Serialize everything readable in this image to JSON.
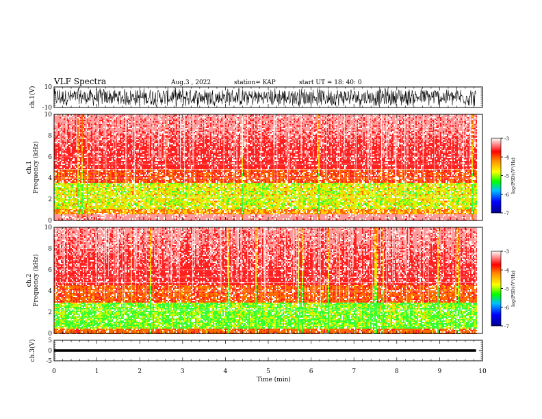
{
  "header": {
    "title": "VLF Spectra",
    "date": "Aug.3  , 2022",
    "station": "station= KAP",
    "start": "start  UT  =   18: 40: 0"
  },
  "chart_data": [
    {
      "type": "line",
      "panel": "ch1-waveform",
      "ylabel": "ch.1(V)",
      "ylim": [
        -10,
        10
      ],
      "yticks": [
        "10",
        "-10"
      ],
      "xlim": [
        0,
        10
      ],
      "style": "dense black noisy waveform spanning nearly full range",
      "x_end": 9.85
    },
    {
      "type": "heatmap",
      "panel": "ch1-spectrogram",
      "ylabel": "ch.1\nFrequency  (kHz)",
      "ylim": [
        0,
        10
      ],
      "yticks": [
        "0",
        "2",
        "4",
        "6",
        "8",
        "10"
      ],
      "xlim": [
        0,
        10
      ],
      "x_end": 9.85,
      "colorbar": {
        "label": "log(PSD)(V²/Hz)",
        "range": [
          -7,
          -3
        ],
        "ticks": [
          "-3",
          "-4",
          "-5",
          "-6",
          "-7"
        ],
        "colors": [
          "#00008b",
          "#0000ff",
          "#00bfff",
          "#00ff00",
          "#ffff00",
          "#ff8c00",
          "#ff0000",
          "#ffffff"
        ]
      },
      "bands": [
        {
          "from_khz": 0,
          "to_khz": 1,
          "level": "white/red"
        },
        {
          "from_khz": 1,
          "to_khz": 4,
          "level": "yellow-green dominant"
        },
        {
          "from_khz": 4,
          "to_khz": 5,
          "level": "red"
        },
        {
          "from_khz": 5,
          "to_khz": 10,
          "level": "light red speckle"
        }
      ]
    },
    {
      "type": "heatmap",
      "panel": "ch2-spectrogram",
      "ylabel": "ch.2\nFrequency  (kHz)",
      "ylim": [
        0,
        10
      ],
      "yticks": [
        "0",
        "2",
        "4",
        "6",
        "8",
        "10"
      ],
      "xlim": [
        0,
        10
      ],
      "x_end": 9.85,
      "colorbar": {
        "label": "log(PSD)(V²/Hz)",
        "range": [
          -7,
          -3
        ],
        "ticks": [
          "-3",
          "-4",
          "-5",
          "-6",
          "-7"
        ],
        "colors": [
          "#00008b",
          "#0000ff",
          "#00bfff",
          "#00ff00",
          "#ffff00",
          "#ff8c00",
          "#ff0000",
          "#ffffff"
        ]
      },
      "bands": [
        {
          "from_khz": 0,
          "to_khz": 3,
          "level": "green-yellow dominant"
        },
        {
          "from_khz": 3,
          "to_khz": 4.5,
          "level": "red-orange"
        },
        {
          "from_khz": 4.5,
          "to_khz": 10,
          "level": "light red speckle"
        }
      ]
    },
    {
      "type": "line",
      "panel": "ch3-waveform",
      "ylabel": "ch.3(V)",
      "ylim": [
        -5,
        5
      ],
      "yticks": [
        "5",
        "0",
        "-5"
      ],
      "xlim": [
        0,
        10
      ],
      "x_end": 9.85,
      "style": "thin black band near 0"
    }
  ],
  "xaxis": {
    "label": "Time  (min)",
    "ticks": [
      "0",
      "1",
      "2",
      "3",
      "4",
      "5",
      "6",
      "7",
      "8",
      "9",
      "10"
    ]
  }
}
